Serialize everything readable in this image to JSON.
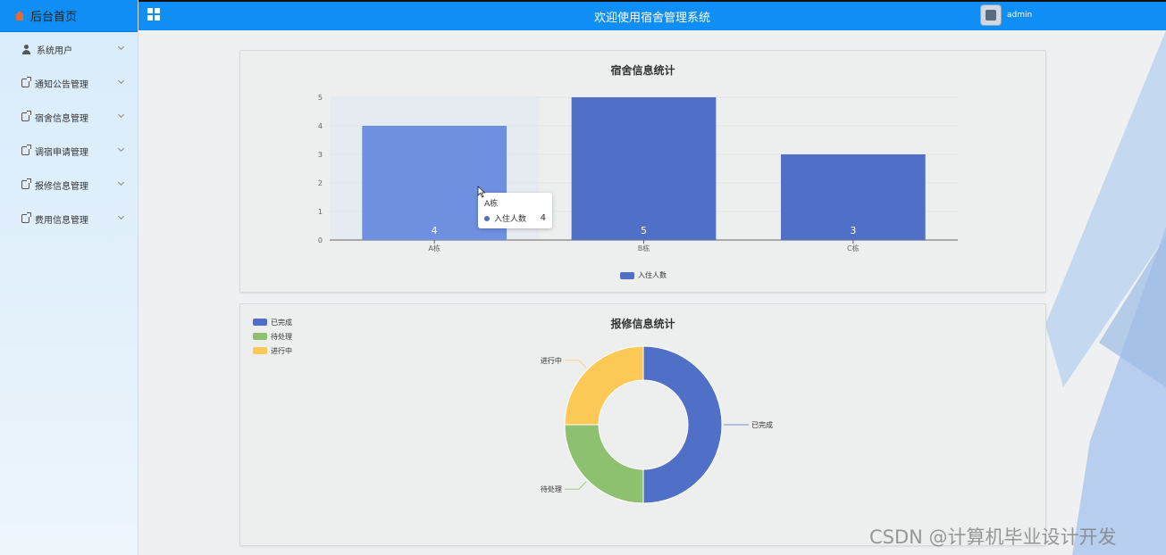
{
  "sidebar": {
    "home_label": "后台首页",
    "items": [
      {
        "label": "系统用户",
        "icon": "user-icon"
      },
      {
        "label": "通知公告管理",
        "icon": "document-icon"
      },
      {
        "label": "宿舍信息管理",
        "icon": "document-icon"
      },
      {
        "label": "调宿申请管理",
        "icon": "document-icon"
      },
      {
        "label": "报修信息管理",
        "icon": "document-icon"
      },
      {
        "label": "费用信息管理",
        "icon": "document-icon"
      }
    ]
  },
  "header": {
    "title": "欢迎使用宿舍管理系统",
    "username": "admin"
  },
  "colors": {
    "header": "#0f8ff5",
    "bar": "#5070c8",
    "bar_hover": "#6f8fe0",
    "pie": [
      "#5070c8",
      "#8ec16f",
      "#fcc856"
    ]
  },
  "tooltip": {
    "title": "A栋",
    "series": "入住人数",
    "value": "4"
  },
  "chart_data": [
    {
      "type": "bar",
      "title": "宿舍信息统计",
      "categories": [
        "A栋",
        "B栋",
        "C栋"
      ],
      "series": [
        {
          "name": "入住人数",
          "values": [
            4,
            5,
            3
          ]
        }
      ],
      "ylim": [
        0,
        5
      ],
      "yticks": [
        "0",
        "1",
        "2",
        "3",
        "4",
        "5"
      ],
      "grid": true,
      "legend": "bottom-center",
      "data_labels": true
    },
    {
      "type": "pie",
      "title": "报修信息统计",
      "labels": [
        "已完成",
        "待处理",
        "进行中"
      ],
      "values": [
        2,
        1,
        1
      ],
      "donut": true,
      "legend": "top-left"
    }
  ],
  "watermark": "CSDN @计算机毕业设计开发"
}
